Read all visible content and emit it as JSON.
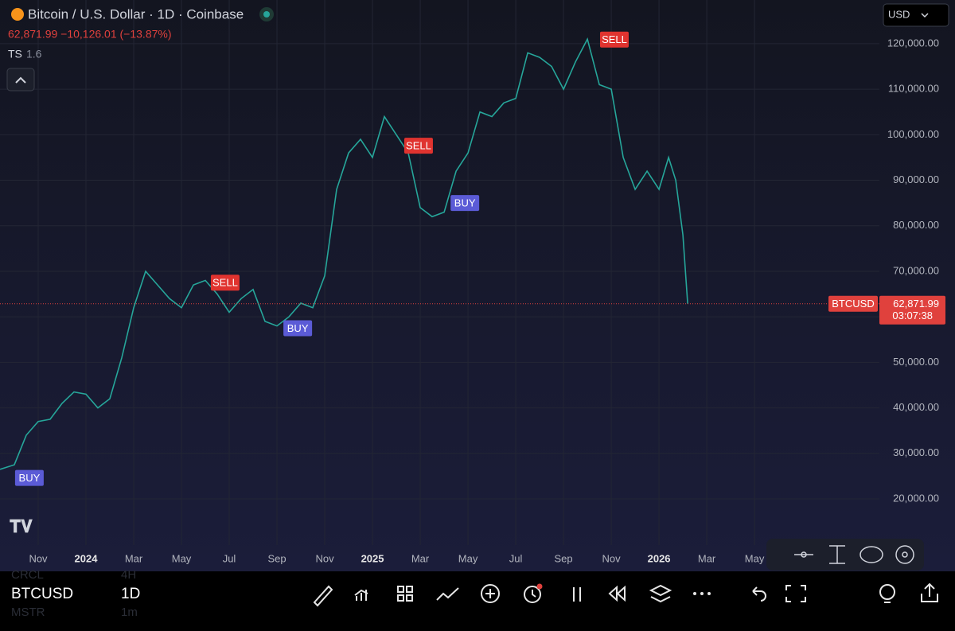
{
  "header": {
    "title": "Bitcoin / U.S. Dollar · 1D · Coinbase",
    "quote": "62,871.99 −10,126.01 (−13.87%)",
    "indicator": "TS",
    "indicator_value": 1.6,
    "currency": "USD"
  },
  "chart_data": {
    "type": "line",
    "color": "#26a69a",
    "x": [
      -1.6,
      -1.0,
      -0.5,
      0,
      0.5,
      1,
      1.5,
      2,
      2.5,
      3,
      3.5,
      4,
      4.5,
      5,
      5.5,
      6,
      6.5,
      7,
      7.5,
      8,
      8.5,
      9,
      9.5,
      10,
      10.5,
      11,
      11.5,
      12,
      12.5,
      13,
      13.5,
      14,
      14.5,
      15,
      15.5,
      16,
      16.5,
      17,
      17.5,
      18,
      18.5,
      19,
      19.5,
      20,
      20.5,
      21,
      21.5,
      22,
      22.5,
      23,
      23.5,
      24,
      24.5,
      25,
      25.5,
      26,
      26.4,
      26.7,
      27.0,
      27.2
    ],
    "values": [
      26500,
      27500,
      34000,
      37000,
      37500,
      41000,
      43500,
      43000,
      40000,
      42000,
      51000,
      62000,
      70000,
      67000,
      64000,
      62000,
      67000,
      68000,
      65000,
      61000,
      64000,
      66000,
      59000,
      58000,
      60000,
      63000,
      62000,
      69000,
      88000,
      96000,
      99000,
      95000,
      104000,
      100000,
      96000,
      84000,
      82000,
      83000,
      92000,
      96000,
      105000,
      104000,
      107000,
      108000,
      118000,
      117000,
      115000,
      110000,
      116000,
      121000,
      111000,
      110000,
      95000,
      88000,
      92000,
      88000,
      95000,
      90000,
      78000,
      62871.99
    ],
    "xlim": [
      -1.6,
      35.23
    ],
    "ylim": [
      9860,
      129600
    ],
    "xticks": [
      {
        "value": 0,
        "label": "Nov"
      },
      {
        "value": 2,
        "label": "2024"
      },
      {
        "value": 4,
        "label": "Mar"
      },
      {
        "value": 6,
        "label": "May"
      },
      {
        "value": 8,
        "label": "Jul"
      },
      {
        "value": 10,
        "label": "Sep"
      },
      {
        "value": 12,
        "label": "Nov"
      },
      {
        "value": 14,
        "label": "2025"
      },
      {
        "value": 16,
        "label": "Mar"
      },
      {
        "value": 18,
        "label": "May"
      },
      {
        "value": 20,
        "label": "Jul"
      },
      {
        "value": 22,
        "label": "Sep"
      },
      {
        "value": 24,
        "label": "Nov"
      },
      {
        "value": 26,
        "label": "2026"
      },
      {
        "value": 28,
        "label": "Mar"
      },
      {
        "value": 30,
        "label": "May"
      }
    ],
    "yticks": [
      {
        "value": 20000,
        "label": "20,000.00"
      },
      {
        "value": 30000,
        "label": "30,000.00"
      },
      {
        "value": 40000,
        "label": "40,000.00"
      },
      {
        "value": 50000,
        "label": "50,000.00"
      },
      {
        "value": 60000,
        "label": "60,000.00"
      },
      {
        "value": 70000,
        "label": "70,000.00"
      },
      {
        "value": 80000,
        "label": "80,000.00"
      },
      {
        "value": 90000,
        "label": "90,000.00"
      },
      {
        "value": 100000,
        "label": "100,000.00"
      },
      {
        "value": 110000,
        "label": "110,000.00"
      },
      {
        "value": 120000,
        "label": "120,000.00"
      }
    ],
    "grid": true,
    "annotations": [
      {
        "label": "BUY",
        "x": -0.37,
        "y": 24600,
        "color": "#5b5bd6"
      },
      {
        "label": "SELL",
        "x": 7.83,
        "y": 67500,
        "color": "#e0332f"
      },
      {
        "label": "BUY",
        "x": 10.87,
        "y": 57500,
        "color": "#5b5bd6"
      },
      {
        "label": "SELL",
        "x": 15.93,
        "y": 97600,
        "color": "#e0332f"
      },
      {
        "label": "BUY",
        "x": 17.87,
        "y": 85000,
        "color": "#5b5bd6"
      },
      {
        "label": "SELL",
        "x": 24.13,
        "y": 120900,
        "color": "#e0332f"
      }
    ],
    "price_line": {
      "value": 62871.99,
      "label": "62,871.99",
      "symbol": "BTCUSD",
      "countdown": "03:07:38",
      "color": "#e0413d"
    }
  },
  "toolbar": {
    "symbol": "BTCUSD",
    "interval": "1D",
    "ghost": [
      "CRCL",
      "4H",
      "MSTR",
      "1m"
    ]
  }
}
